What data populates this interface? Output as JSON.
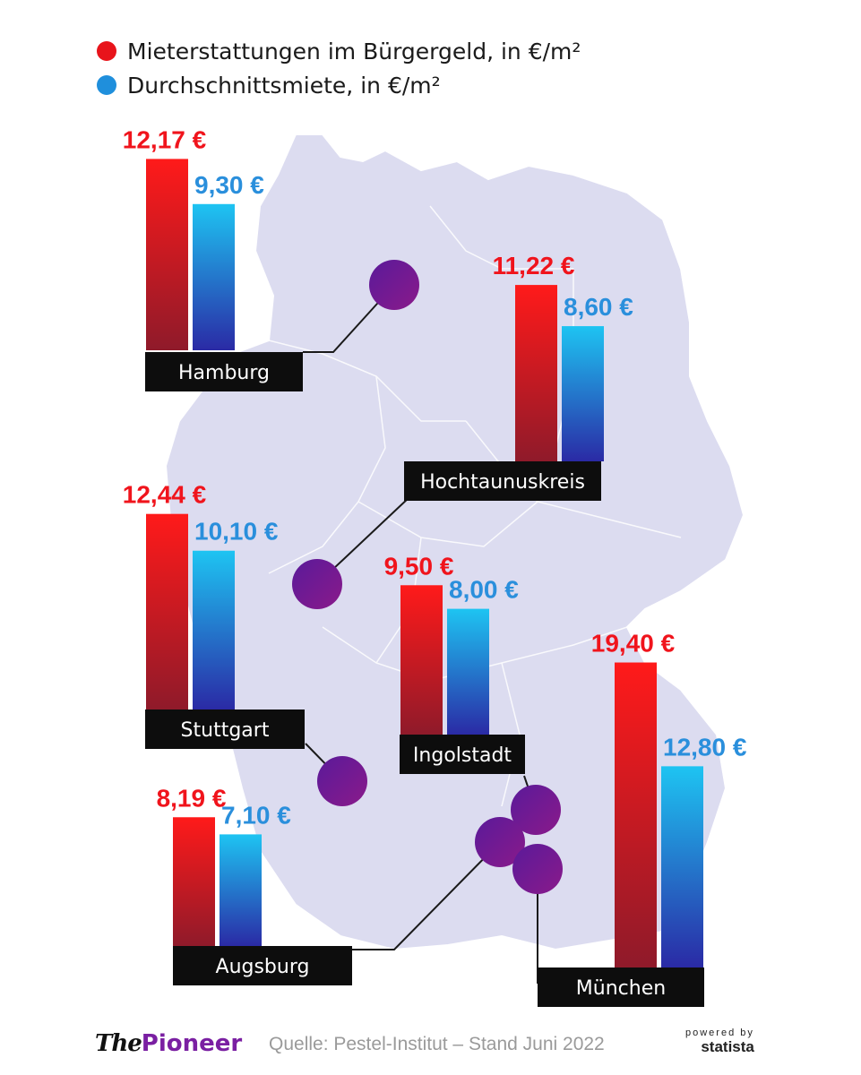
{
  "legend": [
    {
      "label": "Mieterstattungen im Bürgergeld, in €/m²",
      "color": "#e8141b"
    },
    {
      "label": "Durchschnittsmiete, in €/m²",
      "color": "#1f8fdc"
    }
  ],
  "colors": {
    "red_top": "#ff1a1a",
    "red_bottom": "#8f1a2a",
    "blue_top": "#1ec4f2",
    "blue_bottom": "#2a2aa5",
    "red_label": "#f0141c",
    "blue_label": "#2a8fdc",
    "marker": "#6a1aa2",
    "map": "#dcdcf0"
  },
  "chart_data": {
    "type": "bar",
    "series": [
      {
        "name": "Mieterstattungen im Bürgergeld, in €/m²"
      },
      {
        "name": "Durchschnittsmiete, in €/m²"
      }
    ],
    "cities": [
      {
        "name": "Hamburg",
        "values": [
          12.17,
          9.3
        ],
        "labels": [
          "12,17 €",
          "9,30 €"
        ]
      },
      {
        "name": "Hochtaunuskreis",
        "values": [
          11.22,
          8.6
        ],
        "labels": [
          "11,22 €",
          "8,60 €"
        ]
      },
      {
        "name": "Stuttgart",
        "values": [
          12.44,
          10.1
        ],
        "labels": [
          "12,44 €",
          "10,10 €"
        ]
      },
      {
        "name": "Ingolstadt",
        "values": [
          9.5,
          8.0
        ],
        "labels": [
          "9,50 €",
          "8,00 €"
        ]
      },
      {
        "name": "Augsburg",
        "values": [
          8.19,
          7.1
        ],
        "labels": [
          "8,19 €",
          "7,10 €"
        ]
      },
      {
        "name": "München",
        "values": [
          19.4,
          12.8
        ],
        "labels": [
          "19,40 €",
          "12,80 €"
        ]
      }
    ]
  },
  "footer": {
    "brand_the": "The",
    "brand_pioneer": "Pioneer",
    "source": "Quelle: Pestel-Institut – Stand Juni 2022",
    "powered_by": "powered by",
    "statista": "statista"
  }
}
